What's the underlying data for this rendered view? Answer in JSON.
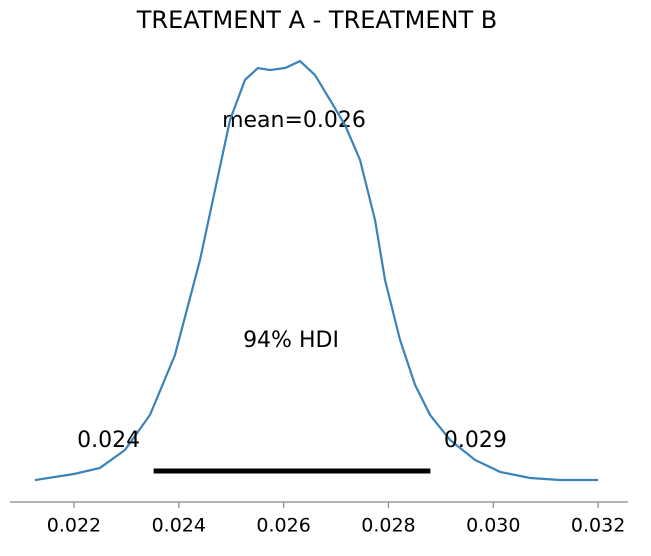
{
  "chart_data": {
    "type": "density",
    "title": "TREATMENT A - TREATMENT B",
    "x": [
      0.021256,
      0.022,
      0.022496,
      0.022973,
      0.02345,
      0.023927,
      0.024405,
      0.024691,
      0.024977,
      0.025263,
      0.025511,
      0.02574,
      0.026027,
      0.026313,
      0.026599,
      0.026885,
      0.027172,
      0.027458,
      0.027744,
      0.027935,
      0.028221,
      0.028508,
      0.028794,
      0.029176,
      0.029653,
      0.03013,
      0.030702,
      0.031275,
      0.032
    ],
    "values": [
      4.9,
      9.0,
      13.1,
      25.3,
      49.0,
      89.7,
      154.2,
      201.6,
      249.1,
      276.3,
      284.4,
      283.0,
      284.4,
      289.1,
      279.6,
      262.7,
      245.7,
      222.0,
      181.3,
      140.6,
      99.9,
      69.4,
      49.0,
      32.1,
      18.5,
      10.4,
      6.3,
      4.9,
      4.9
    ],
    "color": "#3a83b8",
    "mean_label": "mean=0.026",
    "hdi": {
      "label": "94% HDI",
      "values": [
        0.02352,
        0.0288
      ],
      "value_labels": [
        "0.024",
        "0.029"
      ],
      "level": 11
    },
    "xlim": [
      0.02078,
      0.03257
    ],
    "xticks": [
      0.022,
      0.024,
      0.026,
      0.028,
      {
        "value": 0.03,
        "label": "0.030"
      },
      0.032
    ],
    "ylim": [
      -10,
      300
    ]
  }
}
